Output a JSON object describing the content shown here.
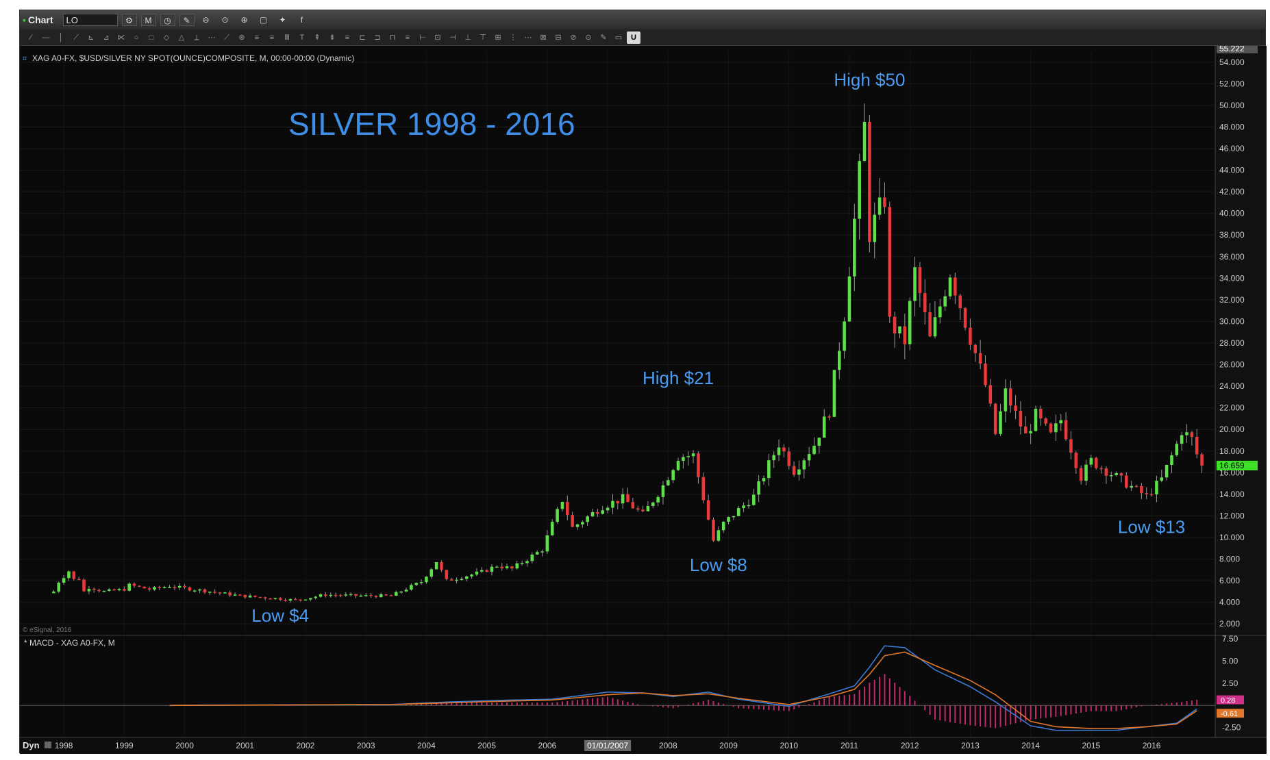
{
  "toolbar": {
    "title": "Chart",
    "symbol_value": "LO",
    "interval_value": "M",
    "icons": [
      "gear-icon",
      "clock-icon",
      "pencil-icon",
      "zoom-out-icon",
      "zoom-reset-icon",
      "zoom-in-icon",
      "window-icon",
      "twitter-icon",
      "facebook-icon"
    ],
    "facebook_label": "f",
    "drawing_tools_count": 40,
    "highlighted_tool_label": "U"
  },
  "chart_data": [
    {
      "type": "candlestick",
      "symbol_header": "XAG A0-FX, $USD/SILVER NY SPOT(OUNCE)COMPOSITE, M, 00:00-00:00 (Dynamic)",
      "title": "SILVER 1998 - 2016",
      "y_ticks": [
        "54.000",
        "52.000",
        "50.000",
        "48.000",
        "46.000",
        "44.000",
        "42.000",
        "40.000",
        "38.000",
        "36.000",
        "34.000",
        "32.000",
        "30.000",
        "28.000",
        "26.000",
        "24.000",
        "22.000",
        "20.000",
        "18.000",
        "16.000",
        "14.000",
        "12.000",
        "10.000",
        "8.000",
        "6.000",
        "4.000",
        "2.000"
      ],
      "y_range": [
        1.0,
        55.0
      ],
      "top_value_label": "55.222",
      "last_price_label": "16.659",
      "last_price": 16.659,
      "copyright": "© eSignal, 2016",
      "annotations": [
        {
          "text": "High $50",
          "date": "2011-05",
          "price": 51.8
        },
        {
          "text": "High $21",
          "date": "2008-03",
          "price": 24.2
        },
        {
          "text": "Low $8",
          "date": "2008-11",
          "price": 6.9
        },
        {
          "text": "Low $13",
          "date": "2016-01",
          "price": 10.4
        },
        {
          "text": "Low $4",
          "date": "2001-08",
          "price": 2.2
        }
      ],
      "candles_monthly_close": [
        {
          "date": "1997-11",
          "close": 5.0
        },
        {
          "date": "1997-12",
          "close": 5.9
        },
        {
          "date": "1998-01",
          "close": 6.4
        },
        {
          "date": "1998-02",
          "close": 6.9
        },
        {
          "date": "1998-03",
          "close": 6.1
        },
        {
          "date": "1998-04",
          "close": 6.2
        },
        {
          "date": "1998-05",
          "close": 5.0
        },
        {
          "date": "1998-06",
          "close": 5.4
        },
        {
          "date": "1998-09",
          "close": 5.0
        },
        {
          "date": "1999-01",
          "close": 5.2
        },
        {
          "date": "1999-02",
          "close": 5.6
        },
        {
          "date": "1999-06",
          "close": 5.2
        },
        {
          "date": "1999-10",
          "close": 5.5
        },
        {
          "date": "2000-01",
          "close": 5.3
        },
        {
          "date": "2000-06",
          "close": 5.0
        },
        {
          "date": "2000-12",
          "close": 4.6
        },
        {
          "date": "2001-06",
          "close": 4.4
        },
        {
          "date": "2001-11",
          "close": 4.2
        },
        {
          "date": "2002-05",
          "close": 4.7
        },
        {
          "date": "2002-12",
          "close": 4.6
        },
        {
          "date": "2003-06",
          "close": 4.6
        },
        {
          "date": "2003-12",
          "close": 5.9
        },
        {
          "date": "2004-03",
          "close": 7.8
        },
        {
          "date": "2004-05",
          "close": 6.0
        },
        {
          "date": "2004-12",
          "close": 6.8
        },
        {
          "date": "2005-03",
          "close": 7.4
        },
        {
          "date": "2005-06",
          "close": 7.1
        },
        {
          "date": "2005-12",
          "close": 8.9
        },
        {
          "date": "2006-04",
          "close": 13.5
        },
        {
          "date": "2006-06",
          "close": 10.9
        },
        {
          "date": "2006-12",
          "close": 12.9
        },
        {
          "date": "2007-04",
          "close": 13.6
        },
        {
          "date": "2007-08",
          "close": 12.1
        },
        {
          "date": "2007-12",
          "close": 14.8
        },
        {
          "date": "2008-03",
          "close": 17.5
        },
        {
          "date": "2008-06",
          "close": 17.6
        },
        {
          "date": "2008-10",
          "close": 9.7
        },
        {
          "date": "2008-12",
          "close": 11.3
        },
        {
          "date": "2009-06",
          "close": 13.8
        },
        {
          "date": "2009-11",
          "close": 18.7
        },
        {
          "date": "2010-02",
          "close": 16.2
        },
        {
          "date": "2010-06",
          "close": 18.6
        },
        {
          "date": "2010-09",
          "close": 21.8
        },
        {
          "date": "2010-12",
          "close": 30.7
        },
        {
          "date": "2011-04",
          "close": 48.0
        },
        {
          "date": "2011-05",
          "close": 38.2
        },
        {
          "date": "2011-08",
          "close": 41.4
        },
        {
          "date": "2011-09",
          "close": 29.9
        },
        {
          "date": "2011-12",
          "close": 28.2
        },
        {
          "date": "2012-02",
          "close": 34.6
        },
        {
          "date": "2012-05",
          "close": 28.3
        },
        {
          "date": "2012-09",
          "close": 34.6
        },
        {
          "date": "2012-12",
          "close": 30.0
        },
        {
          "date": "2013-04",
          "close": 24.1
        },
        {
          "date": "2013-06",
          "close": 19.6
        },
        {
          "date": "2013-08",
          "close": 23.4
        },
        {
          "date": "2013-12",
          "close": 19.4
        },
        {
          "date": "2014-02",
          "close": 21.3
        },
        {
          "date": "2014-05",
          "close": 19.4
        },
        {
          "date": "2014-07",
          "close": 20.9
        },
        {
          "date": "2014-11",
          "close": 15.6
        },
        {
          "date": "2015-01",
          "close": 17.1
        },
        {
          "date": "2015-06",
          "close": 15.6
        },
        {
          "date": "2015-11",
          "close": 14.1
        },
        {
          "date": "2015-12",
          "close": 13.8
        },
        {
          "date": "2016-03",
          "close": 15.4
        },
        {
          "date": "2016-06",
          "close": 18.6
        },
        {
          "date": "2016-07",
          "close": 19.9
        },
        {
          "date": "2016-09",
          "close": 19.1
        },
        {
          "date": "2016-10",
          "close": 17.7
        },
        {
          "date": "2016-11",
          "close": 16.7
        }
      ]
    },
    {
      "type": "line",
      "label": "* MACD - XAG A0-FX, M",
      "y_ticks": [
        "7.50",
        "5.00",
        "2.50",
        "-2.50"
      ],
      "y_range": [
        -3.6,
        7.8
      ],
      "value_labels": [
        "0.28",
        "-0.61"
      ],
      "colors": {
        "macd": "#3a7bd5",
        "signal": "#e0782b",
        "histogram": "#c02a6e"
      },
      "series": [
        {
          "name": "MACD",
          "x": [
            "1999-10",
            "2003-06",
            "2004-06",
            "2005-06",
            "2006-02",
            "2007-01",
            "2007-08",
            "2008-02",
            "2008-09",
            "2009-03",
            "2010-01",
            "2010-09",
            "2011-02",
            "2011-05",
            "2011-08",
            "2011-12",
            "2012-06",
            "2013-01",
            "2013-06",
            "2014-01",
            "2014-06",
            "2015-01",
            "2015-06",
            "2015-12",
            "2016-06",
            "2016-10"
          ],
          "y": [
            0.0,
            0.1,
            0.4,
            0.6,
            0.7,
            1.5,
            1.4,
            1.0,
            1.5,
            0.7,
            -0.1,
            1.3,
            2.2,
            4.3,
            6.7,
            6.5,
            4.0,
            2.1,
            0.4,
            -2.3,
            -2.8,
            -2.8,
            -2.8,
            -2.4,
            -2.0,
            -0.4
          ]
        },
        {
          "name": "Signal",
          "x": [
            "1999-10",
            "2003-06",
            "2004-06",
            "2005-06",
            "2006-02",
            "2007-01",
            "2007-08",
            "2008-02",
            "2008-09",
            "2009-03",
            "2010-01",
            "2010-09",
            "2011-02",
            "2011-05",
            "2011-08",
            "2011-12",
            "2012-06",
            "2013-01",
            "2013-06",
            "2014-01",
            "2014-06",
            "2015-01",
            "2015-06",
            "2015-12",
            "2016-06",
            "2016-10"
          ],
          "y": [
            0.0,
            0.1,
            0.3,
            0.5,
            0.6,
            1.2,
            1.4,
            1.1,
            1.3,
            0.8,
            0.1,
            1.0,
            1.8,
            3.5,
            5.6,
            6.0,
            4.5,
            2.8,
            1.2,
            -1.8,
            -2.4,
            -2.6,
            -2.6,
            -2.4,
            -2.1,
            -0.6
          ]
        }
      ]
    }
  ],
  "x_axis": {
    "year_labels": [
      "1998",
      "1999",
      "2000",
      "2001",
      "2002",
      "2003",
      "2004",
      "2005",
      "2006",
      "2007",
      "2008",
      "2009",
      "2010",
      "2011",
      "2012",
      "2013",
      "2014",
      "2015",
      "2016"
    ],
    "highlighted_date_label": "01/01/2007",
    "corner_label": "Dyn"
  }
}
